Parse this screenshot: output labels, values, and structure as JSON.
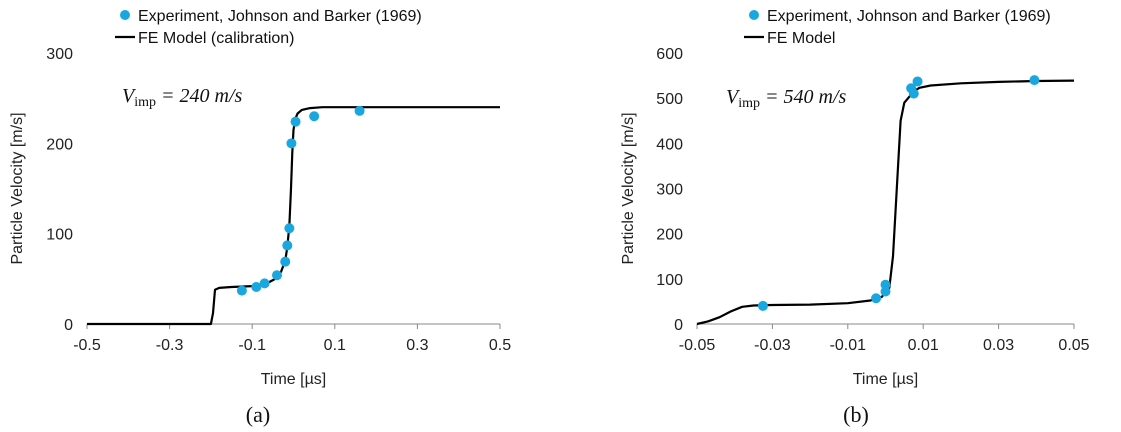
{
  "chart_data": [
    {
      "type": "line",
      "panel": "a",
      "caption": "(a)",
      "xlabel": "Time [µs]",
      "ylabel": "Particle Velocity [m/s]",
      "xlim": [
        -0.5,
        0.5
      ],
      "ylim": [
        0,
        300
      ],
      "xticks": [
        "-0.5",
        "-0.3",
        "-0.1",
        "0.1",
        "0.3",
        "0.5"
      ],
      "xtick_values": [
        -0.5,
        -0.3,
        -0.1,
        0.1,
        0.3,
        0.5
      ],
      "yticks": [
        "0",
        "100",
        "200",
        "300"
      ],
      "ytick_values": [
        0,
        100,
        200,
        300
      ],
      "grid": false,
      "legend_position": "top-left, above plot",
      "annotation": {
        "symbol": "V",
        "subscript": "imp",
        "rest": " = 240 m/s"
      },
      "series": [
        {
          "name": "Experiment, Johnson and Barker (1969)",
          "kind": "scatter",
          "color": "#1aa7e0",
          "x": [
            -0.125,
            -0.09,
            -0.07,
            -0.04,
            -0.02,
            -0.015,
            -0.01,
            -0.005,
            0.005,
            0.05,
            0.16
          ],
          "y": [
            37,
            41,
            45,
            54,
            69,
            87,
            106,
            200,
            224,
            230,
            236
          ]
        },
        {
          "name": "FE Model (calibration)",
          "kind": "line",
          "color": "#000000",
          "x": [
            -0.5,
            -0.2,
            -0.195,
            -0.19,
            -0.18,
            -0.15,
            -0.1,
            -0.06,
            -0.04,
            -0.03,
            -0.02,
            -0.015,
            -0.01,
            -0.006,
            -0.003,
            0.0,
            0.005,
            0.01,
            0.02,
            0.04,
            0.07,
            0.1,
            0.2,
            0.3,
            0.5
          ],
          "y": [
            0,
            0,
            12,
            38,
            40,
            41,
            42,
            46,
            51,
            58,
            70,
            85,
            110,
            150,
            190,
            215,
            228,
            233,
            237,
            239,
            240,
            240,
            240,
            240,
            240
          ]
        }
      ]
    },
    {
      "type": "line",
      "panel": "b",
      "caption": "(b)",
      "xlabel": "Time [µs]",
      "ylabel": "Particle Velocity [m/s]",
      "xlim": [
        -0.05,
        0.05
      ],
      "ylim": [
        0,
        600
      ],
      "xticks": [
        "-0.05",
        "-0.03",
        "-0.01",
        "0.01",
        "0.03",
        "0.05"
      ],
      "xtick_values": [
        -0.05,
        -0.03,
        -0.01,
        0.01,
        0.03,
        0.05
      ],
      "yticks": [
        "0",
        "100",
        "200",
        "300",
        "400",
        "500",
        "600"
      ],
      "ytick_values": [
        0,
        100,
        200,
        300,
        400,
        500,
        600
      ],
      "grid": false,
      "legend_position": "top-left, above plot",
      "annotation": {
        "symbol": "V",
        "subscript": "imp",
        "rest": " = 540 m/s"
      },
      "series": [
        {
          "name": "Experiment, Johnson and Barker (1969)",
          "kind": "scatter",
          "color": "#1aa7e0",
          "x": [
            -0.0325,
            -0.0025,
            0.0,
            0.0,
            0.0068,
            0.0075,
            0.0085,
            0.0395
          ],
          "y": [
            40,
            57,
            72,
            87,
            522,
            510,
            537,
            540
          ]
        },
        {
          "name": "FE Model",
          "kind": "line",
          "color": "#000000",
          "x": [
            -0.05,
            -0.047,
            -0.044,
            -0.041,
            -0.038,
            -0.035,
            -0.03,
            -0.02,
            -0.01,
            -0.004,
            -0.001,
            0.001,
            0.002,
            0.003,
            0.004,
            0.005,
            0.006,
            0.0075,
            0.009,
            0.012,
            0.02,
            0.03,
            0.04,
            0.05
          ],
          "y": [
            0,
            6,
            15,
            28,
            38,
            41,
            42,
            43,
            46,
            52,
            60,
            80,
            150,
            300,
            450,
            490,
            500,
            515,
            523,
            528,
            533,
            536,
            538,
            539
          ]
        }
      ]
    }
  ]
}
